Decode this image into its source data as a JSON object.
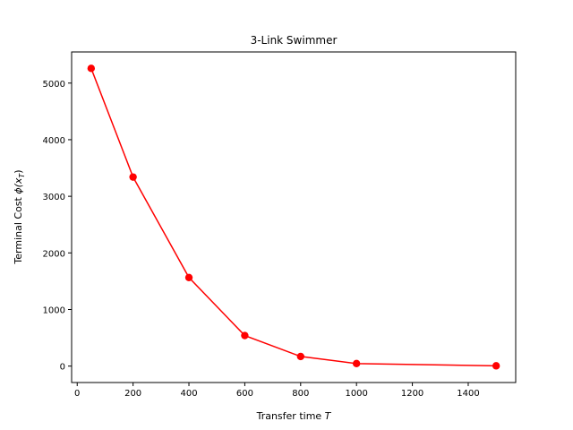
{
  "chart_data": {
    "type": "line",
    "title": "3-Link Swimmer",
    "xlabel_text": "Transfer time ",
    "xlabel_var": "T",
    "ylabel_text": "Terminal Cost ",
    "ylabel_math": "ϕ(x",
    "ylabel_sub": "T",
    "ylabel_close": ")",
    "x": [
      50,
      200,
      400,
      600,
      800,
      1000,
      1500
    ],
    "y": [
      5260,
      3340,
      1565,
      540,
      170,
      45,
      5
    ],
    "xlim": [
      -20,
      1570
    ],
    "ylim": [
      -290,
      5550
    ],
    "xticks": [
      0,
      200,
      400,
      600,
      800,
      1000,
      1200,
      1400
    ],
    "xtick_labels": [
      "0",
      "200",
      "400",
      "600",
      "800",
      "1000",
      "1200",
      "1400"
    ],
    "yticks": [
      0,
      1000,
      2000,
      3000,
      4000,
      5000
    ],
    "ytick_labels": [
      "0",
      "1000",
      "2000",
      "3000",
      "4000",
      "5000"
    ],
    "grid": false,
    "color": "#ff0000",
    "marker": "circle"
  }
}
